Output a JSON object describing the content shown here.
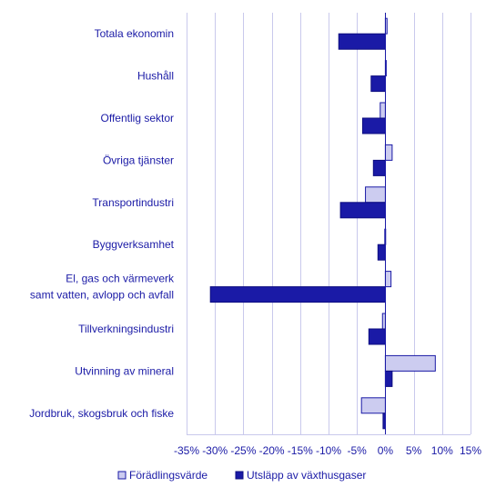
{
  "chart_data": {
    "type": "bar",
    "orientation": "horizontal",
    "categories": [
      [
        "Totala ekonomin"
      ],
      [
        "Hushåll"
      ],
      [
        "Offentlig sektor"
      ],
      [
        "Övriga tjänster"
      ],
      [
        "Transportindustri"
      ],
      [
        "Byggverksamhet"
      ],
      [
        "El, gas och värmeverk",
        "samt vatten, avlopp och avfall"
      ],
      [
        "Tillverkningsindustri"
      ],
      [
        "Utvinning av mineral"
      ],
      [
        "Jordbruk, skogsbruk och fiske"
      ]
    ],
    "series": [
      {
        "name": "Förädlingsvärde",
        "color": "#ccccf0",
        "stroke": "#1a1aa6",
        "values": [
          0.3,
          0.1,
          -0.9,
          1.2,
          -3.5,
          -0.1,
          1.0,
          -0.5,
          8.8,
          -4.2
        ]
      },
      {
        "name": "Utsläpp av växthusgaser",
        "color": "#1a1aa6",
        "stroke": "#0d0d80",
        "values": [
          -8.2,
          -2.5,
          -4.0,
          -2.1,
          -7.9,
          -1.3,
          -30.8,
          -2.9,
          1.2,
          -0.4
        ]
      }
    ],
    "xlim": [
      -35,
      15
    ],
    "xticks": [
      "-35%",
      "-30%",
      "-25%",
      "-20%",
      "-15%",
      "-10%",
      "-5%",
      "0%",
      "5%",
      "10%",
      "15%"
    ],
    "xtick_values": [
      -35,
      -30,
      -25,
      -20,
      -15,
      -10,
      -5,
      0,
      5,
      10,
      15
    ],
    "grid": true,
    "legend_position": "bottom"
  }
}
